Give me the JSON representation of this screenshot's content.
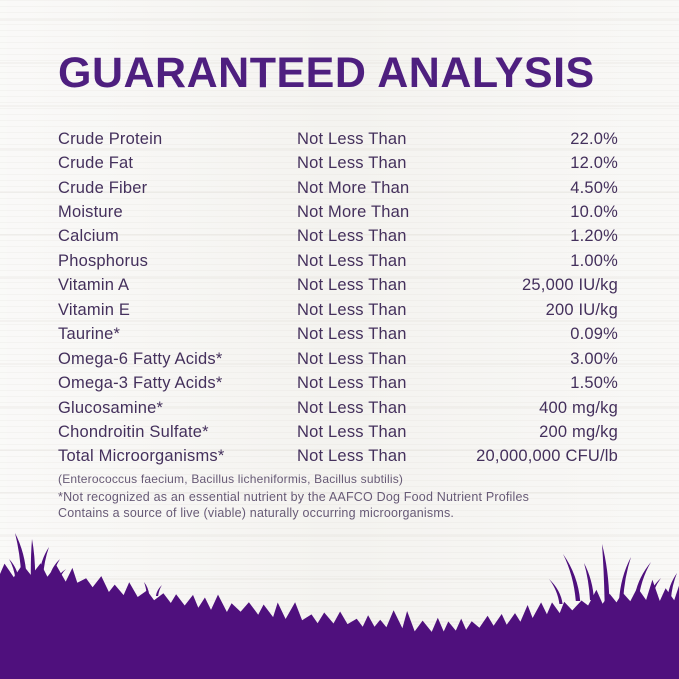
{
  "page": {
    "title": "GUARANTEED ANALYSIS"
  },
  "colors": {
    "title_purple": "#4e1f7f",
    "silhouette_purple": "#4f107d",
    "body_text": "#44305c",
    "muted_text": "#675a76",
    "background": "#f4f3f0"
  },
  "table": {
    "rows": [
      {
        "nutrient": "Crude Protein",
        "condition": "Not Less Than",
        "value": "22.0%"
      },
      {
        "nutrient": "Crude Fat",
        "condition": "Not Less Than",
        "value": "12.0%"
      },
      {
        "nutrient": "Crude Fiber",
        "condition": "Not More Than",
        "value": "4.50%"
      },
      {
        "nutrient": "Moisture",
        "condition": "Not More Than",
        "value": "10.0%"
      },
      {
        "nutrient": "Calcium",
        "condition": "Not Less Than",
        "value": "1.20%"
      },
      {
        "nutrient": "Phosphorus",
        "condition": "Not Less Than",
        "value": "1.00%"
      },
      {
        "nutrient": "Vitamin A",
        "condition": "Not Less Than",
        "value": "25,000 IU/kg"
      },
      {
        "nutrient": "Vitamin E",
        "condition": "Not Less Than",
        "value": "200 IU/kg"
      },
      {
        "nutrient": "Taurine*",
        "condition": "Not Less Than",
        "value": "0.09%"
      },
      {
        "nutrient": "Omega-6 Fatty Acids*",
        "condition": "Not Less Than",
        "value": "3.00%"
      },
      {
        "nutrient": "Omega-3 Fatty Acids*",
        "condition": "Not Less Than",
        "value": "1.50%"
      },
      {
        "nutrient": "Glucosamine*",
        "condition": "Not Less Than",
        "value": "400 mg/kg"
      },
      {
        "nutrient": "Chondroitin Sulfate*",
        "condition": "Not Less Than",
        "value": "200 mg/kg"
      },
      {
        "nutrient": "Total Microorganisms*",
        "condition": "Not Less Than",
        "value": "20,000,000 CFU/lb"
      }
    ]
  },
  "notes": {
    "microorganism_strains": "(Enterococcus faecium, Bacillus licheniformis, Bacillus subtilis)",
    "footnote_line1": "*Not recognized as an essential nutrient by the AAFCO Dog Food Nutrient Profiles",
    "footnote_line2": "Contains a source of live (viable) naturally occurring microorganisms."
  }
}
